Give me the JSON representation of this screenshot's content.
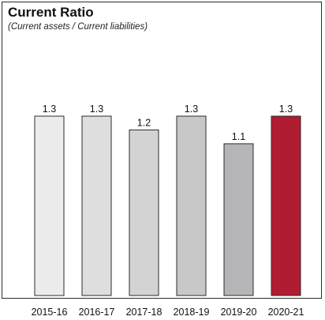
{
  "chart_data": {
    "type": "bar",
    "title": "Current Ratio",
    "subtitle": "(Current assets / Current liabilities)",
    "categories": [
      "2015-16",
      "2016-17",
      "2017-18",
      "2018-19",
      "2019-20",
      "2020-21"
    ],
    "values": [
      1.3,
      1.3,
      1.2,
      1.3,
      1.1,
      1.3
    ],
    "data_labels": [
      "1.3",
      "1.3",
      "1.2",
      "1.3",
      "1.1",
      "1.3"
    ],
    "ylim": [
      0,
      1.3
    ],
    "grid": false,
    "colors": [
      "#ececec",
      "#dedede",
      "#d3d3d3",
      "#c8c8c8",
      "#b5b5b7",
      "#b01c31"
    ],
    "bar_stroke": "#2b2b2b"
  }
}
